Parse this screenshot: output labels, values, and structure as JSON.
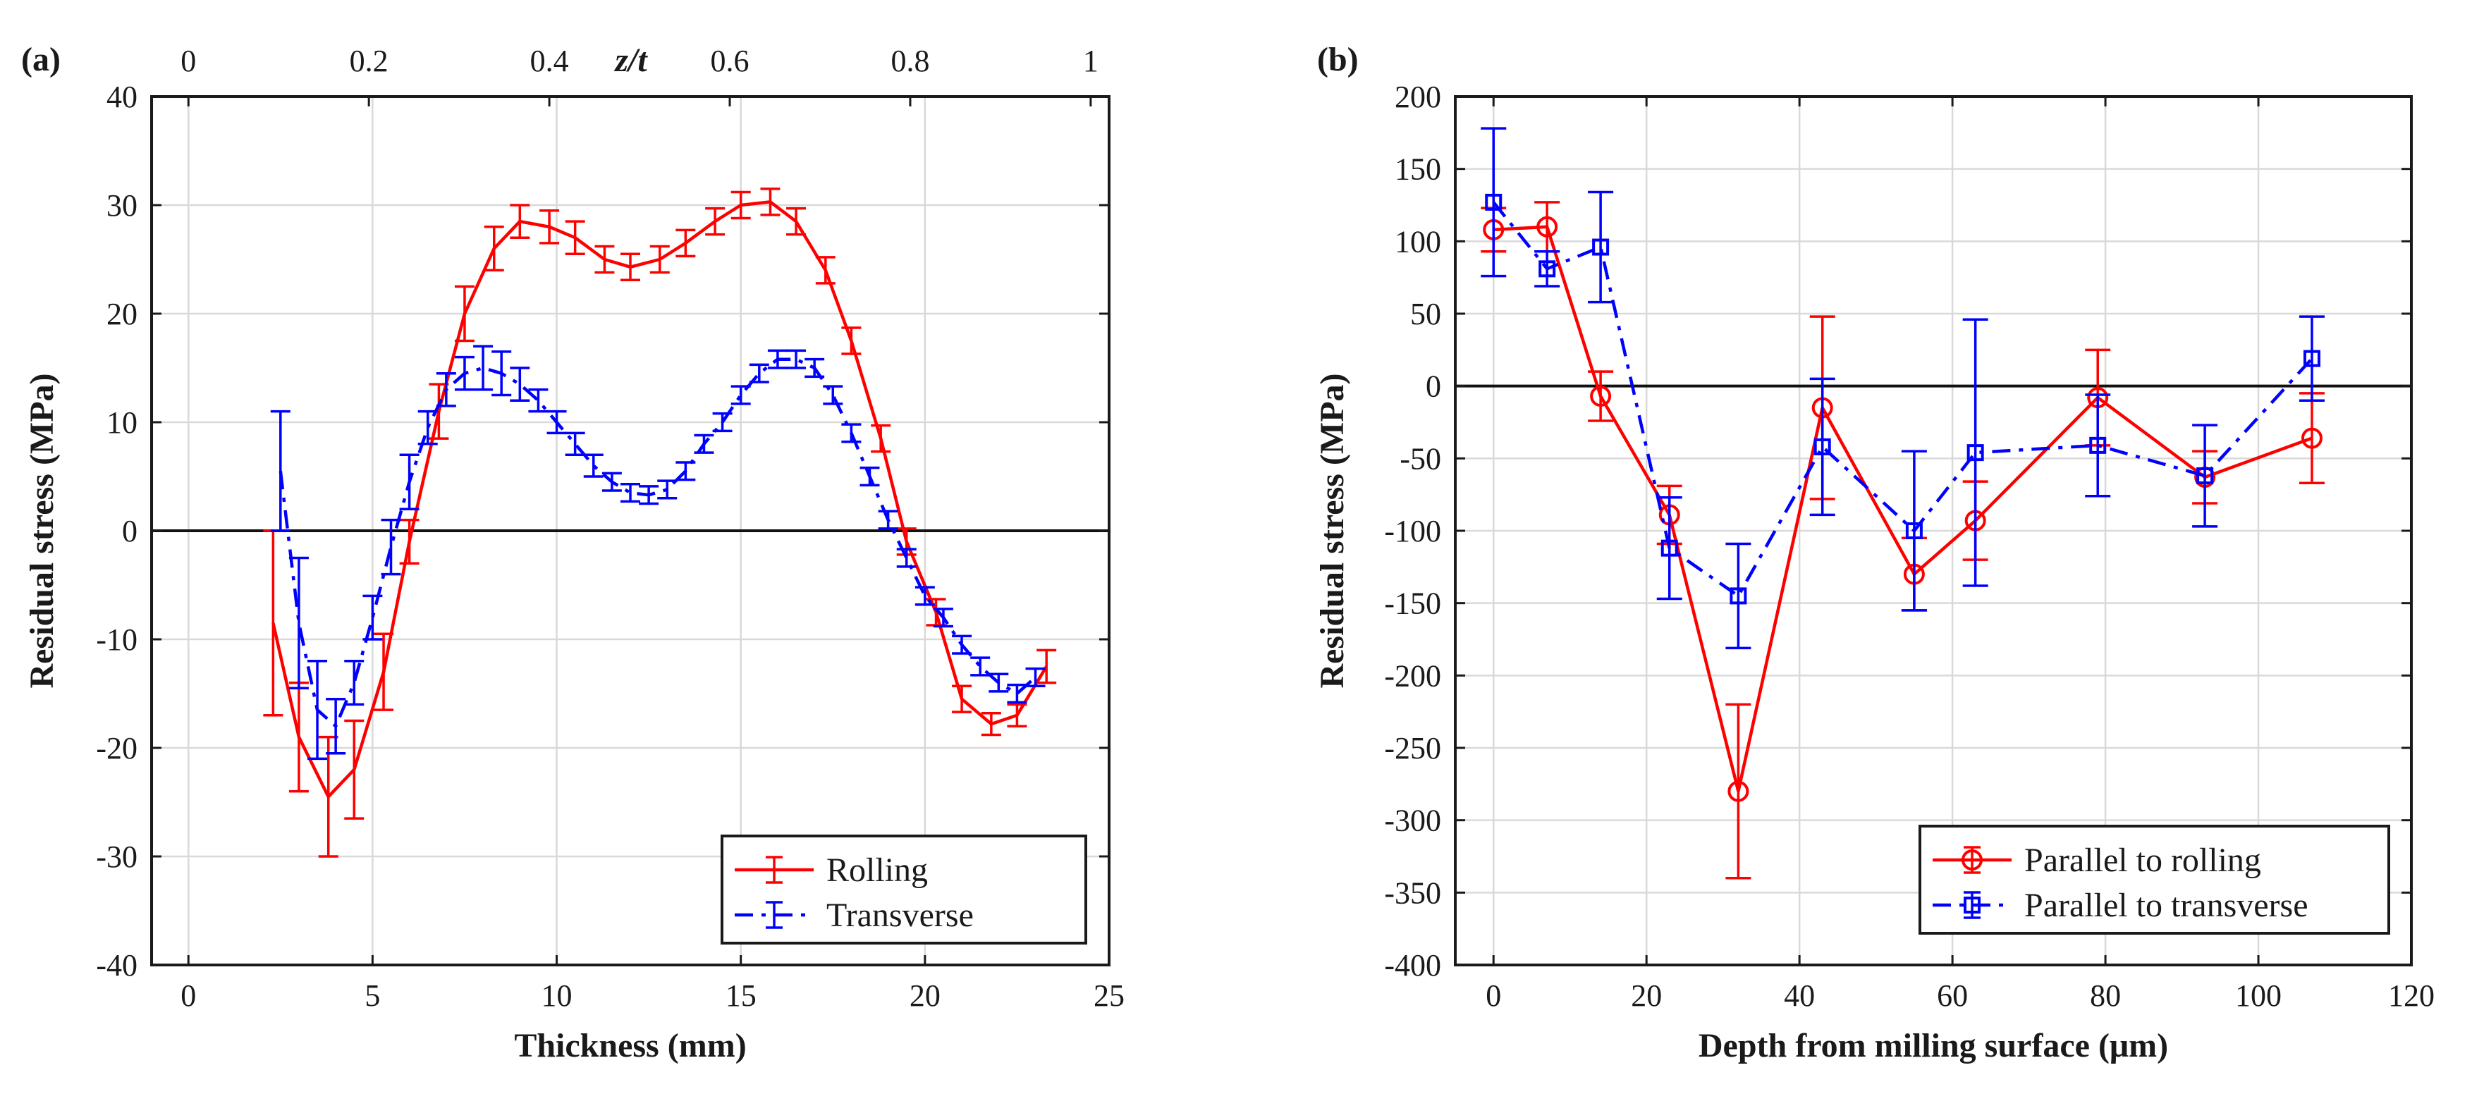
{
  "chart_data": [
    {
      "type": "line",
      "panel_label": "(a)",
      "xlabel": "Thickness (mm)",
      "ylabel": "Residual stress (MPa)",
      "xlim": [
        -1,
        25
      ],
      "ylim": [
        -40,
        40
      ],
      "xticks": [
        0,
        5,
        10,
        15,
        20,
        25
      ],
      "yticks": [
        -40,
        -30,
        -20,
        -10,
        0,
        10,
        20,
        30,
        40
      ],
      "top_axis": {
        "label": "z/t",
        "ticks": [
          0,
          0.2,
          0.4,
          0.6,
          0.8,
          1
        ],
        "tick_labels": [
          "0",
          "0.2",
          "0.4",
          "0.6",
          "0.8",
          "1"
        ]
      },
      "grid": true,
      "zero_line": true,
      "legend_position": "bottom-right",
      "series": [
        {
          "name": "Rolling",
          "color": "#ff0000",
          "dash": "solid",
          "marker": "none",
          "x": [
            2.3,
            3.0,
            3.8,
            4.5,
            5.3,
            6.0,
            6.8,
            7.5,
            8.3,
            9.0,
            9.8,
            10.5,
            11.3,
            12.0,
            12.8,
            13.5,
            14.3,
            15.0,
            15.8,
            16.5,
            17.3,
            18.0,
            18.8,
            19.5,
            20.3,
            21.0,
            21.8,
            22.5,
            23.3
          ],
          "y": [
            -8.5,
            -19.0,
            -24.5,
            -22.0,
            -13.0,
            -1.0,
            11.0,
            20.0,
            26.0,
            28.5,
            28.0,
            27.0,
            25.0,
            24.3,
            25.0,
            26.5,
            28.5,
            30.0,
            30.3,
            28.5,
            24.0,
            17.5,
            8.5,
            -1.0,
            -7.5,
            -15.5,
            -17.8,
            -17.0,
            -12.5
          ],
          "err": [
            8.5,
            5.0,
            5.5,
            4.5,
            3.5,
            2.0,
            2.5,
            2.5,
            2.0,
            1.5,
            1.5,
            1.5,
            1.2,
            1.2,
            1.2,
            1.2,
            1.2,
            1.2,
            1.2,
            1.2,
            1.2,
            1.2,
            1.2,
            1.2,
            1.2,
            1.2,
            1.0,
            1.0,
            1.5
          ]
        },
        {
          "name": "Transverse",
          "color": "#0000ff",
          "dash": "dashdot",
          "marker": "none",
          "x": [
            2.5,
            3.0,
            3.5,
            4.0,
            4.5,
            5.0,
            5.5,
            6.0,
            6.5,
            7.0,
            7.5,
            8.0,
            8.5,
            9.0,
            9.5,
            10.0,
            10.5,
            11.0,
            11.5,
            12.0,
            12.5,
            13.0,
            13.5,
            14.0,
            14.5,
            15.0,
            15.5,
            16.0,
            16.5,
            17.0,
            17.5,
            18.0,
            18.5,
            19.0,
            19.5,
            20.0,
            20.5,
            21.0,
            21.5,
            22.0,
            22.5,
            23.0
          ],
          "y": [
            5.5,
            -8.5,
            -16.5,
            -18.0,
            -14.0,
            -8.0,
            -1.5,
            4.5,
            9.5,
            13.0,
            14.5,
            15.0,
            14.5,
            13.5,
            12.0,
            10.0,
            8.0,
            6.0,
            4.5,
            3.5,
            3.3,
            3.8,
            5.5,
            8.0,
            10.0,
            12.5,
            14.5,
            15.8,
            15.8,
            15.0,
            12.5,
            9.0,
            5.0,
            1.0,
            -2.5,
            -6.0,
            -8.0,
            -10.5,
            -12.5,
            -14.0,
            -15.0,
            -13.5
          ],
          "err": [
            5.5,
            6.0,
            4.5,
            2.5,
            2.0,
            2.0,
            2.5,
            2.5,
            1.5,
            1.5,
            1.5,
            2.0,
            2.0,
            1.5,
            1.0,
            1.0,
            1.0,
            1.0,
            0.8,
            0.8,
            0.8,
            0.8,
            0.8,
            0.8,
            0.8,
            0.8,
            0.8,
            0.8,
            0.8,
            0.8,
            0.8,
            0.8,
            0.8,
            0.8,
            0.8,
            0.8,
            0.8,
            0.8,
            0.8,
            0.8,
            0.8,
            0.8
          ]
        }
      ]
    },
    {
      "type": "line",
      "panel_label": "(b)",
      "xlabel": "Depth from milling surface (μm)",
      "ylabel": "Residual stress (MPa)",
      "xlim": [
        -5,
        120
      ],
      "ylim": [
        -400,
        200
      ],
      "xticks": [
        0,
        20,
        40,
        60,
        80,
        100,
        120
      ],
      "yticks": [
        -400,
        -350,
        -300,
        -250,
        -200,
        -150,
        -100,
        -50,
        0,
        50,
        100,
        150,
        200
      ],
      "grid": true,
      "zero_line": true,
      "legend_position": "bottom-right",
      "series": [
        {
          "name": "Parallel to rolling",
          "color": "#ff0000",
          "dash": "solid",
          "marker": "circle",
          "x": [
            0,
            7,
            14,
            23,
            32,
            43,
            55,
            63,
            79,
            93,
            107
          ],
          "y": [
            108,
            110,
            -7,
            -89,
            -280,
            -15,
            -130,
            -93,
            -8,
            -63,
            -36
          ],
          "err": [
            15,
            17,
            17,
            20,
            60,
            63,
            25,
            27,
            33,
            18,
            31
          ]
        },
        {
          "name": "Parallel to transverse",
          "color": "#0000ff",
          "dash": "dashdot",
          "marker": "square",
          "x": [
            0,
            7,
            14,
            23,
            32,
            43,
            55,
            63,
            79,
            93,
            107
          ],
          "y": [
            127,
            81,
            96,
            -112,
            -145,
            -42,
            -100,
            -46,
            -41,
            -62,
            19
          ],
          "err": [
            51,
            12,
            38,
            35,
            36,
            47,
            55,
            92,
            35,
            35,
            29
          ]
        }
      ]
    }
  ]
}
